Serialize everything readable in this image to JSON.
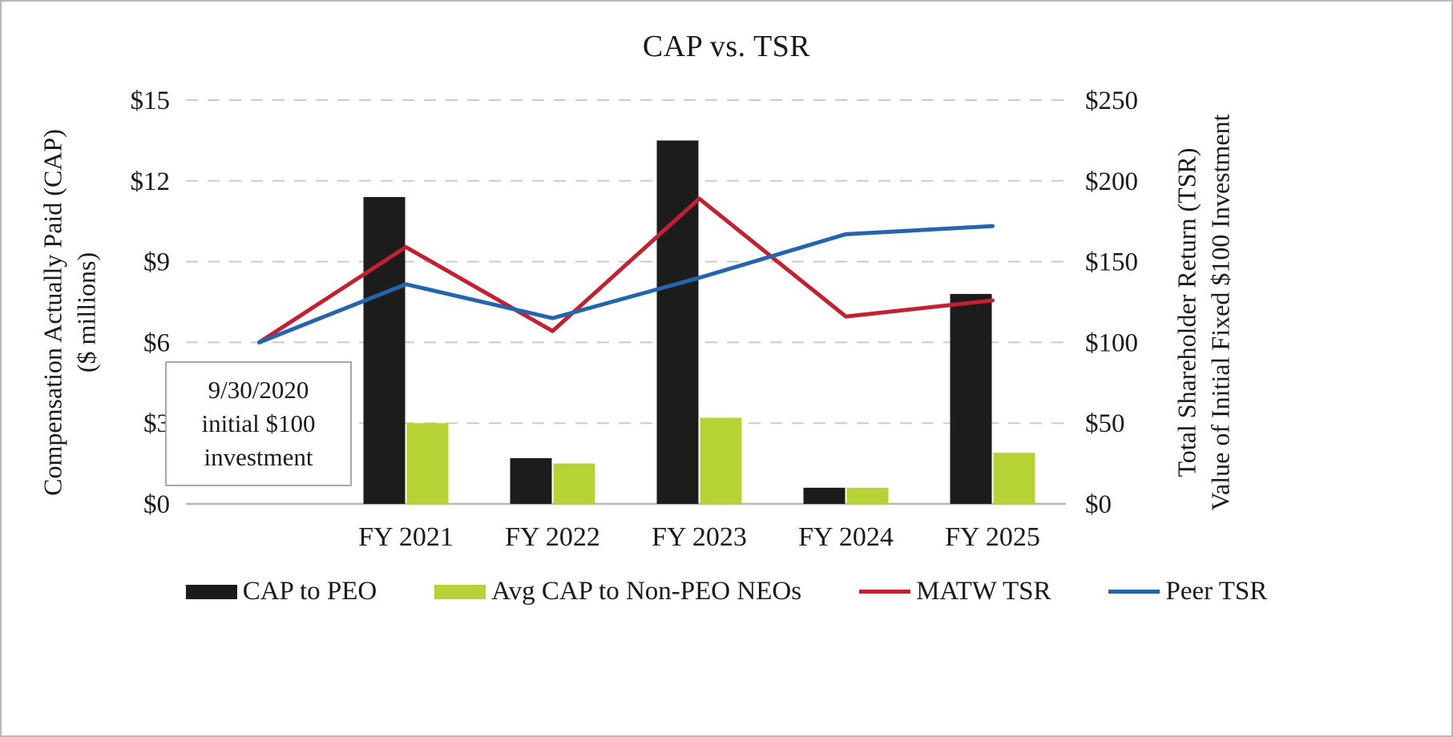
{
  "chart_data": {
    "type": "combo-bar-line",
    "title": "CAP vs. TSR",
    "categories": [
      "FY 2021",
      "FY 2022",
      "FY 2023",
      "FY 2024",
      "FY 2025"
    ],
    "left_axis": {
      "title_line1": "Compensation Actually Paid (CAP)",
      "title_line2": "($ millions)",
      "ylim": [
        0,
        15
      ],
      "ticks": [
        {
          "value": 0,
          "label": "$0"
        },
        {
          "value": 3,
          "label": "$3"
        },
        {
          "value": 6,
          "label": "$6"
        },
        {
          "value": 9,
          "label": "$9"
        },
        {
          "value": 12,
          "label": "$12"
        },
        {
          "value": 15,
          "label": "$15"
        }
      ]
    },
    "right_axis": {
      "title_line1": "Total Shareholder Return (TSR)",
      "title_line2": "Value of Initial Fixed $100 Investment",
      "ylim": [
        0,
        250
      ],
      "ticks": [
        {
          "value": 0,
          "label": "$0"
        },
        {
          "value": 50,
          "label": "$50"
        },
        {
          "value": 100,
          "label": "$100"
        },
        {
          "value": 150,
          "label": "$150"
        },
        {
          "value": 200,
          "label": "$200"
        },
        {
          "value": 250,
          "label": "$250"
        }
      ]
    },
    "bar_series": [
      {
        "name": "CAP to PEO",
        "axis": "left",
        "color": "#1c1c1c",
        "values": [
          11.4,
          1.7,
          13.5,
          0.6,
          7.8
        ]
      },
      {
        "name": "Avg CAP to Non-PEO NEOs",
        "axis": "left",
        "color": "#b5d334",
        "values": [
          3.0,
          1.5,
          3.2,
          0.6,
          1.9
        ]
      }
    ],
    "line_series": [
      {
        "name": "MATW TSR",
        "axis": "right",
        "color": "#c32033",
        "start_label": "9/30/2020",
        "start_value": 100,
        "values": [
          159,
          107,
          189,
          116,
          126
        ]
      },
      {
        "name": "Peer TSR",
        "axis": "right",
        "color": "#2465ad",
        "start_label": "9/30/2020",
        "start_value": 100,
        "values": [
          136,
          115,
          140,
          167,
          172
        ]
      }
    ],
    "annotation": {
      "lines": [
        "9/30/2020",
        "initial $100",
        "investment"
      ]
    },
    "grid": {
      "horizontal": true,
      "style": "dashed"
    },
    "legend_position": "bottom"
  },
  "colors": {
    "text": "#1a1a1a",
    "gridline": "#cbcbcb",
    "axis_line": "#b7b7b7",
    "frame_border": "#b9b9b9",
    "annotation_border": "#a9a9a9",
    "background": "#ffffff"
  }
}
